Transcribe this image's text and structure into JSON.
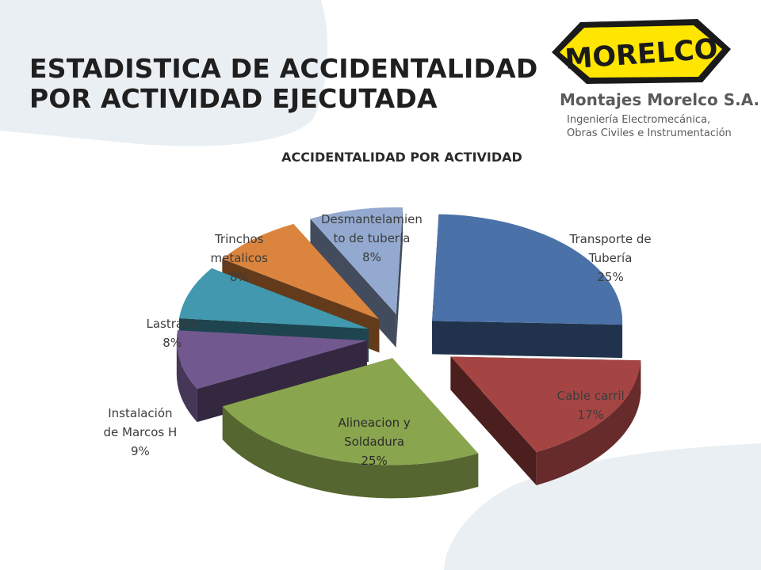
{
  "slide": {
    "title_line1": "ESTADISTICA DE ACCIDENTALIDAD",
    "title_line2": "POR ACTIVIDAD EJECUTADA"
  },
  "logo": {
    "wordmark": "MORELCO",
    "company_name": "Montajes Morelco S.A.",
    "tagline_line1": "Ingeniería Electromecánica,",
    "tagline_line2": "Obras Civiles e Instrumentación",
    "color": "#ffe600"
  },
  "chart_data": {
    "type": "pie",
    "title": "ACCIDENTALIDAD POR ACTIVIDAD",
    "style": "3d-exploded",
    "slices": [
      {
        "label_lines": [
          "Transporte de",
          "Tubería"
        ],
        "value": 25,
        "value_label": "25%",
        "color": "#4a72a8"
      },
      {
        "label_lines": [
          "Cable carril"
        ],
        "value": 17,
        "value_label": "17%",
        "color": "#a54543"
      },
      {
        "label_lines": [
          "Alineacion y",
          "Soldadura"
        ],
        "value": 25,
        "value_label": "25%",
        "color": "#89a54e"
      },
      {
        "label_lines": [
          "Instalación",
          "de Marcos H"
        ],
        "value": 9,
        "value_label": "9%",
        "color": "#71588f"
      },
      {
        "label_lines": [
          "Lastrado"
        ],
        "value": 8,
        "value_label": "8%",
        "color": "#4198af"
      },
      {
        "label_lines": [
          "Trinchos",
          "metalicos"
        ],
        "value": 8,
        "value_label": "8%",
        "color": "#db843d"
      },
      {
        "label_lines": [
          "Desmantelamien",
          "to de tubería"
        ],
        "value": 8,
        "value_label": "8%",
        "color": "#93a9cf"
      }
    ]
  }
}
